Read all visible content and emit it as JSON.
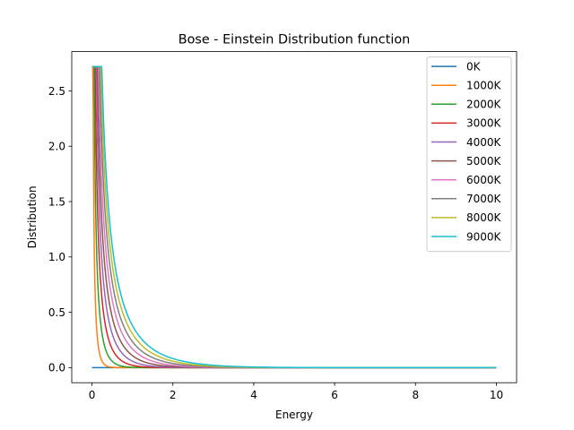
{
  "chart_data": {
    "type": "line",
    "title": "Bose - Einstein Distribution function",
    "xlabel": "Energy",
    "ylabel": "Distribution",
    "xlim": [
      -0.5,
      10.5
    ],
    "ylim": [
      -0.136,
      2.855
    ],
    "xticks": [
      0,
      2,
      4,
      6,
      8,
      10
    ],
    "yticks": [
      0.0,
      0.5,
      1.0,
      1.5,
      2.0,
      2.5
    ],
    "xtick_labels": [
      "0",
      "2",
      "4",
      "6",
      "8",
      "10"
    ],
    "ytick_labels": [
      "0.0",
      "0.5",
      "1.0",
      "1.5",
      "2.0",
      "2.5"
    ],
    "grid": false,
    "legend_position": "top-right",
    "curve_formula": "y = 1 / (exp(E / (kT)) - 1); k = 8.617e-5 eV/K, E from 0 to 10; the 0K series is identically 0",
    "series": [
      {
        "name": "0K",
        "temperature": 0,
        "color": "#1f77b4"
      },
      {
        "name": "1000K",
        "temperature": 1000,
        "color": "#ff7f0e"
      },
      {
        "name": "2000K",
        "temperature": 2000,
        "color": "#2ca02c"
      },
      {
        "name": "3000K",
        "temperature": 3000,
        "color": "#d62728"
      },
      {
        "name": "4000K",
        "temperature": 4000,
        "color": "#9467bd"
      },
      {
        "name": "5000K",
        "temperature": 5000,
        "color": "#8c564b"
      },
      {
        "name": "6000K",
        "temperature": 6000,
        "color": "#e377c2"
      },
      {
        "name": "7000K",
        "temperature": 7000,
        "color": "#7f7f7f"
      },
      {
        "name": "8000K",
        "temperature": 8000,
        "color": "#bcbd22"
      },
      {
        "name": "9000K",
        "temperature": 9000,
        "color": "#17becf"
      }
    ]
  }
}
